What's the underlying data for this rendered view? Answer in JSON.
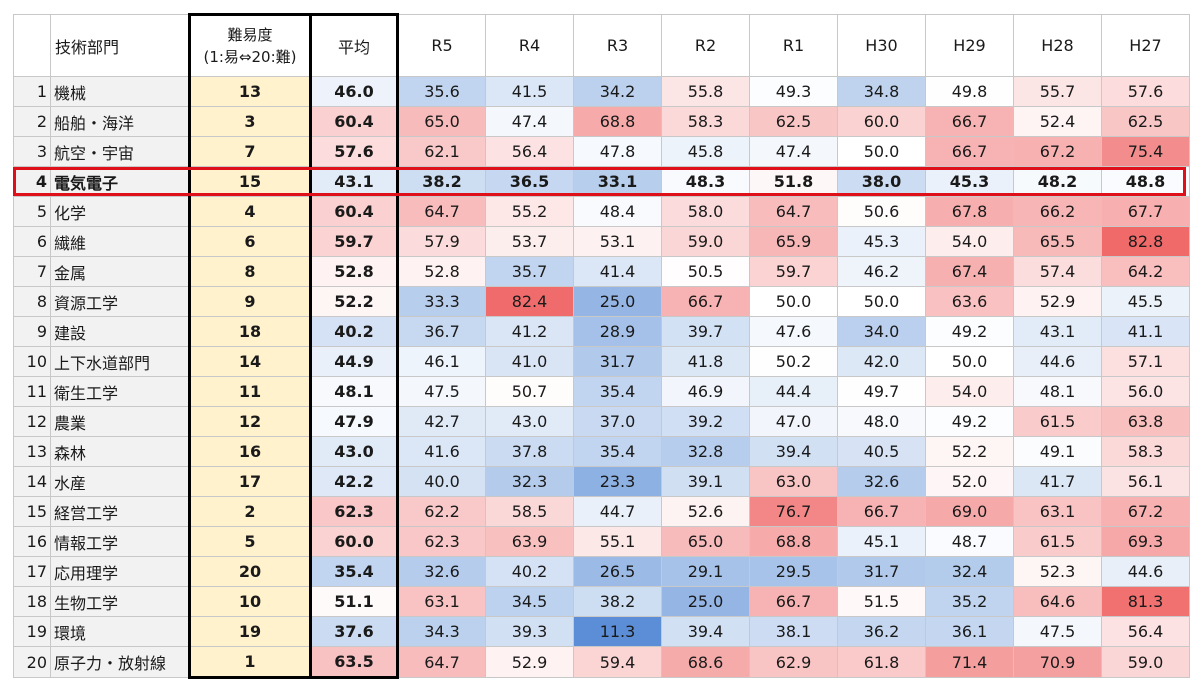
{
  "header": {
    "blank": "",
    "name_label": "技術部門",
    "difficulty_label_line1": "難易度",
    "difficulty_label_line2": "(1:易⇔20:難)",
    "average_label": "平均",
    "years": [
      "R5",
      "R4",
      "R3",
      "R2",
      "R1",
      "H30",
      "H29",
      "H28",
      "H27"
    ]
  },
  "highlight_row": 4,
  "colors": {
    "low": "#5b8ed6",
    "mid": "#ffffff",
    "high": "#f06a6a",
    "difficulty_bg": "#fff2cc",
    "highlight_border": "#e0101a"
  },
  "rows": [
    {
      "no": "1",
      "name": "機械",
      "difficulty": "13",
      "average": "46.0",
      "values": [
        "35.6",
        "41.5",
        "34.2",
        "55.8",
        "49.3",
        "34.8",
        "49.8",
        "55.7",
        "57.6"
      ]
    },
    {
      "no": "2",
      "name": "船舶・海洋",
      "difficulty": "3",
      "average": "60.4",
      "values": [
        "65.0",
        "47.4",
        "68.8",
        "58.3",
        "62.5",
        "60.0",
        "66.7",
        "52.4",
        "62.5"
      ]
    },
    {
      "no": "3",
      "name": "航空・宇宙",
      "difficulty": "7",
      "average": "57.6",
      "values": [
        "62.1",
        "56.4",
        "47.8",
        "45.8",
        "47.4",
        "50.0",
        "66.7",
        "67.2",
        "75.4"
      ]
    },
    {
      "no": "4",
      "name": "電気電子",
      "difficulty": "15",
      "average": "43.1",
      "values": [
        "38.2",
        "36.5",
        "33.1",
        "48.3",
        "51.8",
        "38.0",
        "45.3",
        "48.2",
        "48.8"
      ]
    },
    {
      "no": "5",
      "name": "化学",
      "difficulty": "4",
      "average": "60.4",
      "values": [
        "64.7",
        "55.2",
        "48.4",
        "58.0",
        "64.7",
        "50.6",
        "67.8",
        "66.2",
        "67.7"
      ]
    },
    {
      "no": "6",
      "name": "繊維",
      "difficulty": "6",
      "average": "59.7",
      "values": [
        "57.9",
        "53.7",
        "53.1",
        "59.0",
        "65.9",
        "45.3",
        "54.0",
        "65.5",
        "82.8"
      ]
    },
    {
      "no": "7",
      "name": "金属",
      "difficulty": "8",
      "average": "52.8",
      "values": [
        "52.8",
        "35.7",
        "41.4",
        "50.5",
        "59.7",
        "46.2",
        "67.4",
        "57.4",
        "64.2"
      ]
    },
    {
      "no": "8",
      "name": "資源工学",
      "difficulty": "9",
      "average": "52.2",
      "values": [
        "33.3",
        "82.4",
        "25.0",
        "66.7",
        "50.0",
        "50.0",
        "63.6",
        "52.9",
        "45.5"
      ]
    },
    {
      "no": "9",
      "name": "建設",
      "difficulty": "18",
      "average": "40.2",
      "values": [
        "36.7",
        "41.2",
        "28.9",
        "39.7",
        "47.6",
        "34.0",
        "49.2",
        "43.1",
        "41.1"
      ]
    },
    {
      "no": "10",
      "name": "上下水道部門",
      "difficulty": "14",
      "average": "44.9",
      "values": [
        "46.1",
        "41.0",
        "31.7",
        "41.8",
        "50.2",
        "42.0",
        "50.0",
        "44.6",
        "57.1"
      ]
    },
    {
      "no": "11",
      "name": "衛生工学",
      "difficulty": "11",
      "average": "48.1",
      "values": [
        "47.5",
        "50.7",
        "35.4",
        "46.9",
        "44.4",
        "49.7",
        "54.0",
        "48.1",
        "56.0"
      ]
    },
    {
      "no": "12",
      "name": "農業",
      "difficulty": "12",
      "average": "47.9",
      "values": [
        "42.7",
        "43.0",
        "37.0",
        "39.2",
        "47.0",
        "48.0",
        "49.2",
        "61.5",
        "63.8"
      ]
    },
    {
      "no": "13",
      "name": "森林",
      "difficulty": "16",
      "average": "43.0",
      "values": [
        "41.6",
        "37.8",
        "35.4",
        "32.8",
        "39.4",
        "40.5",
        "52.2",
        "49.1",
        "58.3"
      ]
    },
    {
      "no": "14",
      "name": "水産",
      "difficulty": "17",
      "average": "42.2",
      "values": [
        "40.0",
        "32.3",
        "23.3",
        "39.1",
        "63.0",
        "32.6",
        "52.0",
        "41.7",
        "56.1"
      ]
    },
    {
      "no": "15",
      "name": "経営工学",
      "difficulty": "2",
      "average": "62.3",
      "values": [
        "62.2",
        "58.5",
        "44.7",
        "52.6",
        "76.7",
        "66.7",
        "69.0",
        "63.1",
        "67.2"
      ]
    },
    {
      "no": "16",
      "name": "情報工学",
      "difficulty": "5",
      "average": "60.0",
      "values": [
        "62.3",
        "63.9",
        "55.1",
        "65.0",
        "68.8",
        "45.1",
        "48.7",
        "61.5",
        "69.3"
      ]
    },
    {
      "no": "17",
      "name": "応用理学",
      "difficulty": "20",
      "average": "35.4",
      "values": [
        "32.6",
        "40.2",
        "26.5",
        "29.1",
        "29.5",
        "31.7",
        "32.4",
        "52.3",
        "44.6"
      ]
    },
    {
      "no": "18",
      "name": "生物工学",
      "difficulty": "10",
      "average": "51.1",
      "values": [
        "63.1",
        "34.5",
        "38.2",
        "25.0",
        "66.7",
        "51.5",
        "35.2",
        "64.6",
        "81.3"
      ]
    },
    {
      "no": "19",
      "name": "環境",
      "difficulty": "19",
      "average": "37.6",
      "values": [
        "34.3",
        "39.3",
        "11.3",
        "39.4",
        "38.1",
        "36.2",
        "36.1",
        "47.5",
        "56.4"
      ]
    },
    {
      "no": "20",
      "name": "原子力・放射線",
      "difficulty": "1",
      "average": "63.5",
      "values": [
        "64.7",
        "52.9",
        "59.4",
        "68.6",
        "62.9",
        "61.8",
        "71.4",
        "70.9",
        "59.0"
      ]
    }
  ]
}
